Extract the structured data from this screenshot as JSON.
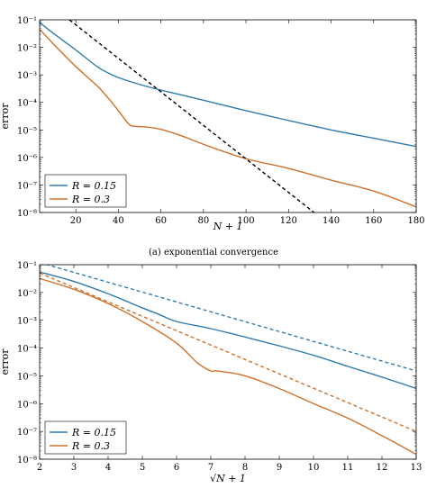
{
  "figure_caption": "(a) exponential convergence",
  "chart_data": [
    {
      "type": "line",
      "title": "",
      "xlabel": "N + 1",
      "ylabel": "error",
      "yscale": "log",
      "xlim": [
        3,
        180
      ],
      "ylim": [
        1e-08,
        0.1
      ],
      "xticks": [
        20,
        40,
        60,
        80,
        100,
        120,
        140,
        160,
        180
      ],
      "xtick_labels": [
        "20",
        "40",
        "60",
        "80",
        "100",
        "120",
        "140",
        "160",
        "180"
      ],
      "yticks": [
        1e-08,
        1e-07,
        1e-06,
        1e-05,
        0.0001,
        0.001,
        0.01,
        0.1
      ],
      "ytick_labels": [
        "10⁻⁸",
        "10⁻⁷",
        "10⁻⁶",
        "10⁻⁵",
        "10⁻⁴",
        "10⁻³",
        "10⁻²",
        "10⁻¹"
      ],
      "grid": false,
      "legend_position": "bottom-left",
      "legend": [
        "R = 0.15",
        "R = 0.3"
      ],
      "series": [
        {
          "name": "R = 0.15",
          "color": "#2e7bb0",
          "style": "solid",
          "x": [
            3,
            10,
            20,
            30,
            35,
            40,
            50,
            60,
            80,
            100,
            120,
            140,
            160,
            180
          ],
          "y": [
            0.08,
            0.03,
            0.008,
            0.002,
            0.0012,
            0.0008,
            0.00045,
            0.00028,
            0.00012,
            5e-05,
            2.2e-05,
            1e-05,
            5e-06,
            2.5e-06
          ]
        },
        {
          "name": "R = 0.3",
          "color": "#d0702a",
          "style": "solid",
          "x": [
            3,
            10,
            20,
            30,
            35,
            40,
            45,
            48,
            52,
            60,
            70,
            80,
            100,
            120,
            140,
            160,
            180
          ],
          "y": [
            0.045,
            0.012,
            0.002,
            0.0004,
            0.00015,
            5e-05,
            1.6e-05,
            1.35e-05,
            1.3e-05,
            1.05e-05,
            6e-06,
            3e-06,
            9e-07,
            4e-07,
            1.5e-07,
            6e-08,
            1.6e-08
          ]
        },
        {
          "name": "",
          "color": "#000000",
          "style": "dashed",
          "x": [
            17,
            132
          ],
          "y": [
            0.1,
            1e-08
          ]
        }
      ]
    },
    {
      "type": "line",
      "title": "",
      "xlabel": "√N + 1",
      "ylabel": "error",
      "yscale": "log",
      "xlim": [
        2,
        13
      ],
      "ylim": [
        1e-08,
        0.1
      ],
      "xticks": [
        2,
        3,
        4,
        5,
        6,
        7,
        8,
        9,
        10,
        11,
        12,
        13
      ],
      "xtick_labels": [
        "2",
        "3",
        "4",
        "5",
        "6",
        "7",
        "8",
        "9",
        "10",
        "11",
        "12",
        "13"
      ],
      "yticks": [
        1e-08,
        1e-07,
        1e-06,
        1e-05,
        0.0001,
        0.001,
        0.01,
        0.1
      ],
      "ytick_labels": [
        "10⁻⁸",
        "10⁻⁷",
        "10⁻⁶",
        "10⁻⁵",
        "10⁻⁴",
        "10⁻³",
        "10⁻²",
        "10⁻¹"
      ],
      "grid": false,
      "legend_position": "bottom-left",
      "legend": [
        "R = 0.15",
        "R = 0.3"
      ],
      "series": [
        {
          "name": "R = 0.15",
          "color": "#2e7bb0",
          "style": "solid",
          "x": [
            2,
            3,
            4,
            5,
            5.5,
            6,
            7,
            8,
            9,
            10,
            11,
            12,
            13
          ],
          "y": [
            0.055,
            0.025,
            0.009,
            0.0028,
            0.0016,
            0.0009,
            0.0005,
            0.00025,
            0.00012,
            5.5e-05,
            2.2e-05,
            9e-06,
            3.5e-06
          ]
        },
        {
          "name": "R = 0.3",
          "color": "#d0702a",
          "style": "solid",
          "x": [
            2,
            3,
            4,
            5,
            6,
            6.6,
            7,
            7.2,
            8,
            9,
            10,
            11,
            12,
            13
          ],
          "y": [
            0.032,
            0.013,
            0.004,
            0.0009,
            0.00015,
            3e-05,
            1.5e-05,
            1.5e-05,
            1e-05,
            3.5e-06,
            1e-06,
            3e-07,
            7e-08,
            1.5e-08
          ]
        },
        {
          "name": "",
          "color": "#2e7bb0",
          "style": "dashed",
          "x": [
            2,
            13
          ],
          "y": [
            0.12,
            1.5e-05
          ]
        },
        {
          "name": "",
          "color": "#d0702a",
          "style": "dashed",
          "x": [
            2,
            13
          ],
          "y": [
            0.05,
            1e-07
          ]
        }
      ]
    }
  ]
}
